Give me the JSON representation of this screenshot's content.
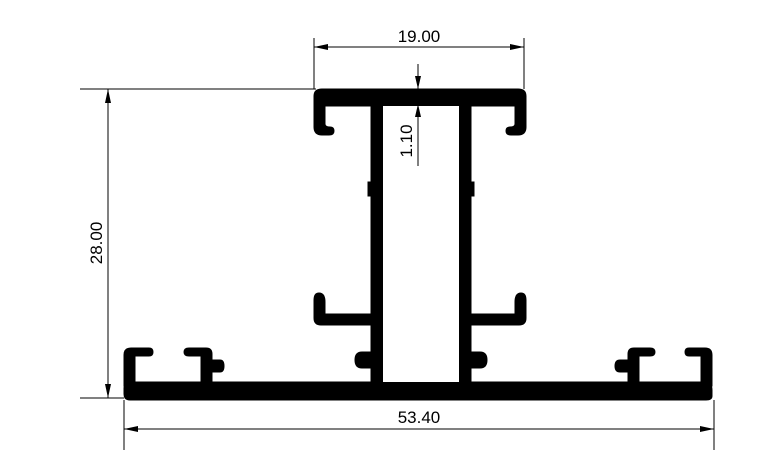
{
  "drawing": {
    "subject": "aluminium extrusion profile cross-section",
    "colors": {
      "profile": "#000000",
      "background": "#ffffff",
      "dimension": "#000000"
    },
    "dimensions": {
      "top_width": "19.00",
      "wall_thickness": "1.10",
      "height": "28.00",
      "base_width": "53.40"
    }
  }
}
